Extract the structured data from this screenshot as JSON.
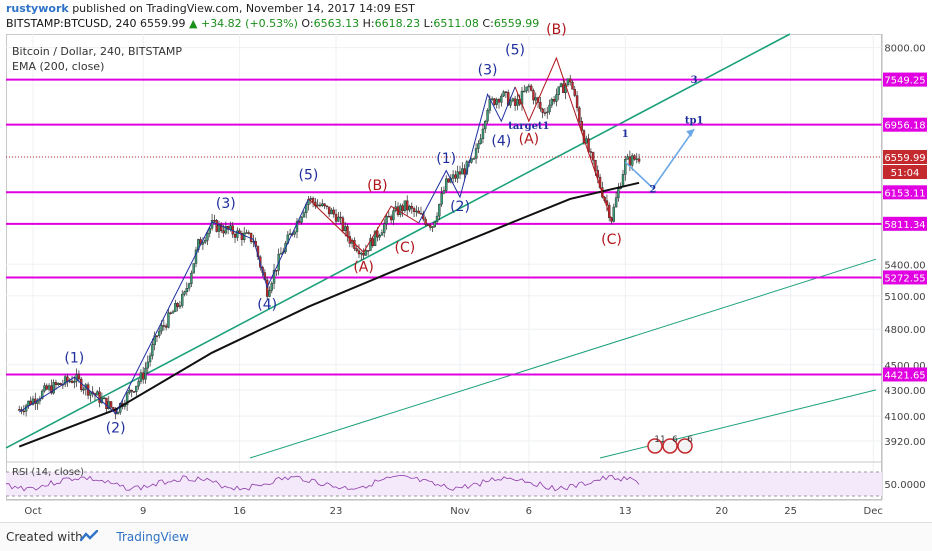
{
  "header": {
    "user": "rustywork",
    "published_text": "published on TradingView.com, November 14, 2017 14:09 EST",
    "symbol": "BITSTAMP:BTCUSD, 240",
    "last": "6559.99",
    "change": "▲ +34.82 (+0.53%)",
    "open_label": "O:",
    "open": "6563.13",
    "high_label": "H:",
    "high": "6618.23",
    "low_label": "L:",
    "low": "6511.08",
    "close_label": "C:",
    "close": "6559.99"
  },
  "legend": {
    "line1": "Bitcoin / Dollar, 240, BITSTAMP",
    "line2": "EMA (200, close)"
  },
  "rsi_label": "RSI (14, close)",
  "footer": {
    "created_with": "Created with",
    "brand": "TradingView"
  },
  "colors": {
    "up": "#3c9b76",
    "down": "#c4292e",
    "level": "#e100e1",
    "trend": "#1aa07a",
    "wave_blue": "#1f2f9e",
    "wave_red": "#b0151c",
    "ema": "#111111",
    "projection": "#6aa8e6"
  },
  "chart_data": {
    "type": "candlestick",
    "y_axis_scale": "log",
    "ylim": [
      3800,
      8200
    ],
    "y_ticks": [
      8000,
      7549.25,
      6956.18,
      6559.99,
      6153.11,
      5811.34,
      5400,
      5272.55,
      5100,
      4800,
      4500,
      4421.65,
      4300,
      4100,
      3920
    ],
    "x_tick_labels": [
      "Oct",
      "9",
      "16",
      "23",
      "Nov",
      "6",
      "13",
      "20",
      "25",
      "Dec"
    ],
    "horizontal_levels": [
      7549.25,
      6956.18,
      6153.11,
      5811.34,
      5272.55,
      4421.65
    ],
    "last_price": 6559.99,
    "countdown": "51:04",
    "ohlc_anchor_path": [
      {
        "d": "Sep 30",
        "v": 4150
      },
      {
        "d": "Oct 2",
        "v": 4300
      },
      {
        "d": "Oct 4",
        "v": 4390
      },
      {
        "d": "Oct 6",
        "v": 4220
      },
      {
        "d": "Oct 7",
        "v": 4140
      },
      {
        "d": "Oct 9",
        "v": 4420
      },
      {
        "d": "Oct 10",
        "v": 4750
      },
      {
        "d": "Oct 12",
        "v": 5100
      },
      {
        "d": "Oct 13",
        "v": 5600
      },
      {
        "d": "Oct 14",
        "v": 5800
      },
      {
        "d": "Oct 17",
        "v": 5650
      },
      {
        "d": "Oct 18",
        "v": 5150
      },
      {
        "d": "Oct 19",
        "v": 5500
      },
      {
        "d": "Oct 21",
        "v": 6080
      },
      {
        "d": "Oct 23",
        "v": 5900
      },
      {
        "d": "Oct 24",
        "v": 5650
      },
      {
        "d": "Oct 25",
        "v": 5520
      },
      {
        "d": "Oct 27",
        "v": 5900
      },
      {
        "d": "Oct 28",
        "v": 6000
      },
      {
        "d": "Oct 30",
        "v": 5800
      },
      {
        "d": "Oct 31",
        "v": 6250
      },
      {
        "d": "Nov 2",
        "v": 6500
      },
      {
        "d": "Nov 3",
        "v": 7200
      },
      {
        "d": "Nov 4",
        "v": 7350
      },
      {
        "d": "Nov 5",
        "v": 7200
      },
      {
        "d": "Nov 6",
        "v": 7450
      },
      {
        "d": "Nov 7",
        "v": 7100
      },
      {
        "d": "Nov 8",
        "v": 7350
      },
      {
        "d": "Nov 9",
        "v": 7550
      },
      {
        "d": "Nov 10",
        "v": 6800
      },
      {
        "d": "Nov 11",
        "v": 6300
      },
      {
        "d": "Nov 12",
        "v": 5870
      },
      {
        "d": "Nov 13",
        "v": 6500
      },
      {
        "d": "Nov 14",
        "v": 6560
      }
    ],
    "ema_200": [
      {
        "d": "Sep 30",
        "v": 3880
      },
      {
        "d": "Oct 7",
        "v": 4150
      },
      {
        "d": "Oct 14",
        "v": 4600
      },
      {
        "d": "Oct 21",
        "v": 5000
      },
      {
        "d": "Oct 28",
        "v": 5380
      },
      {
        "d": "Nov 4",
        "v": 5780
      },
      {
        "d": "Nov 9",
        "v": 6080
      },
      {
        "d": "Nov 14",
        "v": 6260
      }
    ],
    "wave_labels": [
      {
        "text": "(1)",
        "d": "Oct 4",
        "v": 4520,
        "color": "blue"
      },
      {
        "text": "(2)",
        "d": "Oct 7",
        "v": 3980,
        "color": "blue"
      },
      {
        "text": "(3)",
        "d": "Oct 15",
        "v": 5980,
        "color": "blue"
      },
      {
        "text": "(4)",
        "d": "Oct 18",
        "v": 4980,
        "color": "blue"
      },
      {
        "text": "(5)",
        "d": "Oct 21",
        "v": 6300,
        "color": "blue"
      },
      {
        "text": "(B)",
        "d": "Oct 26",
        "v": 6180,
        "color": "red"
      },
      {
        "text": "(A)",
        "d": "Oct 25",
        "v": 5330,
        "color": "red"
      },
      {
        "text": "(C)",
        "d": "Oct 28",
        "v": 5520,
        "color": "red"
      },
      {
        "text": "(1)",
        "d": "Oct 31",
        "v": 6490,
        "color": "blue"
      },
      {
        "text": "(2)",
        "d": "Nov 1",
        "v": 5950,
        "color": "blue"
      },
      {
        "text": "(3)",
        "d": "Nov 3",
        "v": 7620,
        "color": "blue"
      },
      {
        "text": "(4)",
        "d": "Nov 4",
        "v": 6700,
        "color": "blue"
      },
      {
        "text": "(5)",
        "d": "Nov 5",
        "v": 7900,
        "color": "blue"
      },
      {
        "text": "(B)",
        "d": "Nov 8",
        "v": 8200,
        "color": "red"
      },
      {
        "text": "(A)",
        "d": "Nov 6",
        "v": 6720,
        "color": "red"
      },
      {
        "text": "(C)",
        "d": "Nov 12",
        "v": 5600,
        "color": "red"
      }
    ],
    "annotations": [
      {
        "text": "target1",
        "d": "Nov 6",
        "v": 6900
      },
      {
        "text": "1",
        "d": "Nov 13",
        "v": 6800
      },
      {
        "text": "2",
        "d": "Nov 15",
        "v": 6150
      },
      {
        "text": "3",
        "d": "Nov 18",
        "v": 7500
      },
      {
        "text": "tp1",
        "d": "Nov 18",
        "v": 6970
      }
    ],
    "event_badges": [
      "11",
      "6",
      "6"
    ],
    "rsi": {
      "level": "50.0000",
      "upper": 70,
      "lower": 30
    }
  }
}
